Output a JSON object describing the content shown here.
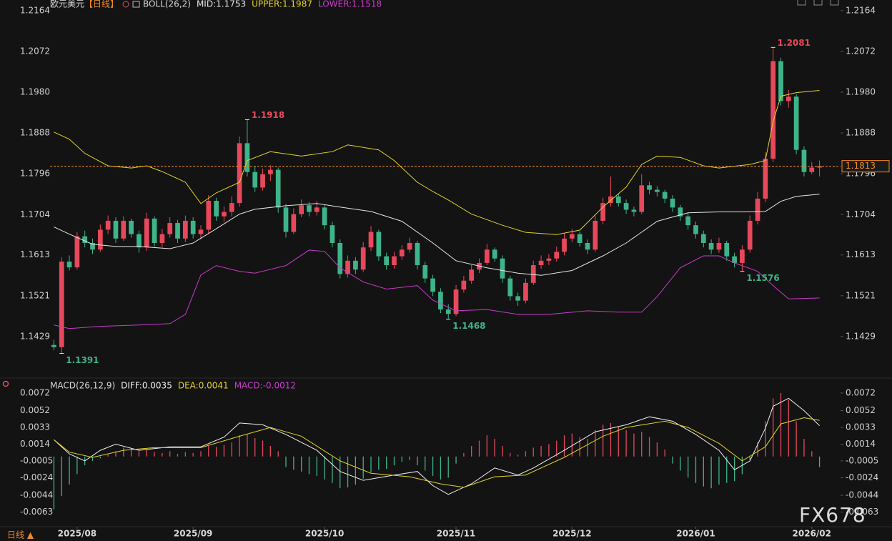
{
  "chart_data": [
    {
      "type": "candlestick",
      "title": "欧元美元",
      "subtitle": "【日线】",
      "indicator": "BOLL(26,2)",
      "up_color": "#e8485b",
      "down_color": "#3db489",
      "xlim": [
        -0.5,
        99.5
      ],
      "ylim": [
        1.1337,
        1.2175
      ],
      "yticks": [
        1.2164,
        1.2072,
        {
          "value": 1.198,
          "label": "1.1980"
        },
        1.1888,
        1.1796,
        1.1704,
        1.1613,
        1.1521,
        1.1429
      ],
      "xticks": [
        {
          "value": 3,
          "label": "2025/08"
        },
        {
          "value": 18,
          "label": "2025/09"
        },
        {
          "value": 35,
          "label": "2025/10"
        },
        {
          "value": 52,
          "label": "2025/11"
        },
        {
          "value": 67,
          "label": "2025/12"
        },
        {
          "value": 83,
          "label": "2026/01"
        },
        {
          "value": 98,
          "label": "2026/02"
        }
      ],
      "last_price_color": "#f08a24",
      "candles": [
        [
          1.141,
          1.1422,
          1.1398,
          1.1405
        ],
        [
          1.1405,
          1.1608,
          1.1391,
          1.1598
        ],
        [
          1.1598,
          1.1612,
          1.1578,
          1.1585
        ],
        [
          1.1585,
          1.1665,
          1.158,
          1.1655
        ],
        [
          1.1655,
          1.1668,
          1.163,
          1.164
        ],
        [
          1.164,
          1.165,
          1.1615,
          1.1625
        ],
        [
          1.1625,
          1.1682,
          1.162,
          1.167
        ],
        [
          1.167,
          1.1702,
          1.166,
          1.169
        ],
        [
          1.169,
          1.1698,
          1.164,
          1.165
        ],
        [
          1.165,
          1.17,
          1.1645,
          1.169
        ],
        [
          1.169,
          1.1695,
          1.1652,
          1.166
        ],
        [
          1.166,
          1.1668,
          1.1618,
          1.163
        ],
        [
          1.163,
          1.1708,
          1.1622,
          1.1695
        ],
        [
          1.1695,
          1.17,
          1.1632,
          1.164
        ],
        [
          1.164,
          1.1672,
          1.163,
          1.166
        ],
        [
          1.166,
          1.1698,
          1.1652,
          1.1685
        ],
        [
          1.1685,
          1.1692,
          1.164,
          1.165
        ],
        [
          1.165,
          1.1702,
          1.1642,
          1.169
        ],
        [
          1.169,
          1.1698,
          1.165,
          1.166
        ],
        [
          1.166,
          1.168,
          1.1648,
          1.167
        ],
        [
          1.167,
          1.1748,
          1.1662,
          1.1735
        ],
        [
          1.1735,
          1.1742,
          1.169,
          1.17
        ],
        [
          1.17,
          1.1722,
          1.1688,
          1.171
        ],
        [
          1.171,
          1.1745,
          1.17,
          1.173
        ],
        [
          1.173,
          1.188,
          1.1722,
          1.1865
        ],
        [
          1.1865,
          1.1918,
          1.179,
          1.18
        ],
        [
          1.18,
          1.1812,
          1.1755,
          1.1765
        ],
        [
          1.1765,
          1.1808,
          1.1758,
          1.1795
        ],
        [
          1.1795,
          1.1815,
          1.178,
          1.1805
        ],
        [
          1.1805,
          1.181,
          1.1708,
          1.172
        ],
        [
          1.172,
          1.1728,
          1.1652,
          1.1665
        ],
        [
          1.1665,
          1.1718,
          1.166,
          1.1705
        ],
        [
          1.1705,
          1.1738,
          1.1698,
          1.1725
        ],
        [
          1.1725,
          1.1732,
          1.17,
          1.171
        ],
        [
          1.171,
          1.1735,
          1.1702,
          1.172
        ],
        [
          1.172,
          1.1726,
          1.167,
          1.168
        ],
        [
          1.168,
          1.1688,
          1.163,
          1.164
        ],
        [
          1.164,
          1.1648,
          1.156,
          1.157
        ],
        [
          1.157,
          1.1612,
          1.1562,
          1.16
        ],
        [
          1.16,
          1.1608,
          1.157,
          1.158
        ],
        [
          1.158,
          1.1642,
          1.1575,
          1.163
        ],
        [
          1.163,
          1.1678,
          1.1622,
          1.1665
        ],
        [
          1.1665,
          1.167,
          1.16,
          1.161
        ],
        [
          1.161,
          1.1618,
          1.158,
          1.159
        ],
        [
          1.159,
          1.162,
          1.1582,
          1.161
        ],
        [
          1.161,
          1.1635,
          1.1602,
          1.1625
        ],
        [
          1.1625,
          1.1652,
          1.1618,
          1.164
        ],
        [
          1.164,
          1.1645,
          1.158,
          1.159
        ],
        [
          1.159,
          1.1598,
          1.155,
          1.156
        ],
        [
          1.156,
          1.1568,
          1.152,
          1.153
        ],
        [
          1.153,
          1.1538,
          1.1482,
          1.149
        ],
        [
          1.149,
          1.1502,
          1.1468,
          1.148
        ],
        [
          1.148,
          1.1545,
          1.1475,
          1.1535
        ],
        [
          1.1535,
          1.1566,
          1.1528,
          1.1555
        ],
        [
          1.1555,
          1.159,
          1.1548,
          1.158
        ],
        [
          1.158,
          1.1605,
          1.1572,
          1.1595
        ],
        [
          1.1595,
          1.1638,
          1.159,
          1.1625
        ],
        [
          1.1625,
          1.163,
          1.1598,
          1.1605
        ],
        [
          1.1605,
          1.1612,
          1.155,
          1.156
        ],
        [
          1.156,
          1.1566,
          1.151,
          1.152
        ],
        [
          1.152,
          1.1528,
          1.1498,
          1.151
        ],
        [
          1.151,
          1.156,
          1.1504,
          1.155
        ],
        [
          1.155,
          1.16,
          1.1545,
          1.159
        ],
        [
          1.159,
          1.1612,
          1.1582,
          1.16
        ],
        [
          1.16,
          1.1615,
          1.159,
          1.1605
        ],
        [
          1.1605,
          1.1632,
          1.1598,
          1.162
        ],
        [
          1.162,
          1.1662,
          1.1612,
          1.165
        ],
        [
          1.165,
          1.1672,
          1.1642,
          1.166
        ],
        [
          1.166,
          1.1666,
          1.1632,
          1.164
        ],
        [
          1.164,
          1.1648,
          1.1615,
          1.1625
        ],
        [
          1.1625,
          1.1702,
          1.162,
          1.169
        ],
        [
          1.169,
          1.1742,
          1.1682,
          1.173
        ],
        [
          1.173,
          1.179,
          1.1722,
          1.1745
        ],
        [
          1.1745,
          1.1752,
          1.1722,
          1.173
        ],
        [
          1.173,
          1.1738,
          1.1705,
          1.1715
        ],
        [
          1.1715,
          1.1722,
          1.17,
          1.171
        ],
        [
          1.171,
          1.1795,
          1.1705,
          1.177
        ],
        [
          1.177,
          1.1778,
          1.175,
          1.176
        ],
        [
          1.176,
          1.1768,
          1.1745,
          1.1755
        ],
        [
          1.1755,
          1.176,
          1.173,
          1.174
        ],
        [
          1.174,
          1.1748,
          1.171,
          1.172
        ],
        [
          1.172,
          1.1726,
          1.169,
          1.17
        ],
        [
          1.17,
          1.1708,
          1.167,
          1.168
        ],
        [
          1.168,
          1.1688,
          1.165,
          1.166
        ],
        [
          1.166,
          1.1668,
          1.163,
          1.164
        ],
        [
          1.164,
          1.1648,
          1.1615,
          1.1625
        ],
        [
          1.1625,
          1.1652,
          1.1618,
          1.164
        ],
        [
          1.164,
          1.1645,
          1.16,
          1.161
        ],
        [
          1.161,
          1.1618,
          1.1585,
          1.1595
        ],
        [
          1.1595,
          1.1635,
          1.1576,
          1.1625
        ],
        [
          1.1625,
          1.1702,
          1.1618,
          1.169
        ],
        [
          1.169,
          1.1755,
          1.1682,
          1.174
        ],
        [
          1.174,
          1.1845,
          1.1732,
          1.183
        ],
        [
          1.183,
          1.2081,
          1.1822,
          1.205
        ],
        [
          1.205,
          1.2058,
          1.195,
          1.196
        ],
        [
          1.196,
          1.1985,
          1.1945,
          1.197
        ],
        [
          1.197,
          1.1975,
          1.184,
          1.185
        ],
        [
          1.185,
          1.1858,
          1.179,
          1.18
        ],
        [
          1.18,
          1.1822,
          1.1795,
          1.181
        ],
        [
          1.181,
          1.1826,
          1.179,
          1.1813
        ]
      ],
      "annotations": [
        1.2081,
        1.1918,
        1.1468,
        1.1391,
        1.1576
      ],
      "series": [
        {
          "name": "MID:1.1753",
          "color": "#e6e6e6",
          "x": [
            0,
            2,
            5,
            8,
            11,
            15,
            18,
            21,
            24,
            26,
            30,
            34,
            37,
            41,
            45,
            49,
            52,
            56,
            60,
            63,
            67,
            71,
            74,
            78,
            82,
            86,
            89,
            92,
            94,
            96,
            99
          ],
          "values": [
            1.1676,
            1.166,
            1.1637,
            1.1632,
            1.1632,
            1.1627,
            1.164,
            1.1672,
            1.1705,
            1.1716,
            1.1724,
            1.1729,
            1.1721,
            1.1711,
            1.1689,
            1.164,
            1.16,
            1.1584,
            1.1572,
            1.1567,
            1.1578,
            1.1611,
            1.164,
            1.1689,
            1.1708,
            1.171,
            1.171,
            1.1711,
            1.1734,
            1.1745,
            1.175
          ]
        },
        {
          "name": "UPPER:1.1987",
          "color": "#e3d327",
          "x": [
            0,
            2,
            4,
            7,
            10,
            12,
            14,
            17,
            19,
            21,
            24,
            25,
            28,
            32,
            36,
            38,
            42,
            44,
            47,
            49,
            51,
            54,
            58,
            61,
            65,
            68,
            71,
            74,
            76,
            78,
            81,
            84,
            86,
            90,
            92,
            93,
            94,
            96,
            99
          ],
          "values": [
            1.189,
            1.1874,
            1.1842,
            1.1814,
            1.1809,
            1.1814,
            1.1801,
            1.1777,
            1.1729,
            1.1753,
            1.1777,
            1.1826,
            1.1846,
            1.1836,
            1.1846,
            1.1861,
            1.185,
            1.1826,
            1.1777,
            1.1756,
            1.1737,
            1.1705,
            1.168,
            1.1664,
            1.1659,
            1.1669,
            1.1721,
            1.1766,
            1.1817,
            1.1836,
            1.1833,
            1.1814,
            1.1809,
            1.1817,
            1.1826,
            1.1914,
            1.1971,
            1.1979,
            1.1984
          ]
        },
        {
          "name": "LOWER:1.1518",
          "color": "#c93bcb",
          "x": [
            0,
            2,
            6,
            11,
            15,
            17,
            19,
            21,
            24,
            26,
            30,
            33,
            35,
            37,
            40,
            43,
            47,
            49,
            52,
            56,
            60,
            64,
            69,
            73,
            76,
            78,
            81,
            84,
            86,
            88,
            91,
            93,
            95,
            99
          ],
          "values": [
            1.1455,
            1.1447,
            1.1452,
            1.1455,
            1.1458,
            1.1479,
            1.1568,
            1.1589,
            1.1576,
            1.1572,
            1.1589,
            1.1624,
            1.1621,
            1.1584,
            1.1552,
            1.1536,
            1.1544,
            1.1511,
            1.1487,
            1.149,
            1.1479,
            1.1479,
            1.1487,
            1.1484,
            1.1484,
            1.1519,
            1.1584,
            1.1611,
            1.1611,
            1.1595,
            1.1576,
            1.1544,
            1.1514,
            1.1516
          ]
        }
      ]
    },
    {
      "type": "macd",
      "title": "MACD(26,12,9)",
      "xlim": [
        -0.5,
        99.5
      ],
      "ylim": [
        -0.0078,
        0.0076
      ],
      "yticks": [
        0.0072,
        0.0052,
        0.0033,
        0.0014,
        -0.0005,
        -0.0024,
        -0.0044,
        -0.0063
      ],
      "series": [
        {
          "name": "DIFF:0.0035",
          "color": "#f0f0f0",
          "x": [
            0,
            2,
            4,
            6,
            8,
            11,
            15,
            19,
            22,
            24,
            27,
            30,
            34,
            37,
            40,
            44,
            47,
            49,
            51,
            54,
            57,
            60,
            62,
            66,
            70,
            74,
            77,
            80,
            83,
            86,
            88,
            90,
            92,
            93,
            95,
            97,
            99
          ],
          "values": [
            0.0019,
            0.0003,
            -0.0005,
            0.0007,
            0.0014,
            0.0007,
            0.0011,
            0.0011,
            0.0022,
            0.0038,
            0.0036,
            0.0025,
            0.0007,
            -0.0017,
            -0.0027,
            -0.0021,
            -0.0017,
            -0.0033,
            -0.0043,
            -0.0031,
            -0.0013,
            -0.0021,
            -0.0013,
            0.0007,
            0.0028,
            0.0036,
            0.0045,
            0.004,
            0.0025,
            0.0007,
            -0.0015,
            -0.0005,
            0.0032,
            0.0057,
            0.0066,
            0.0052,
            0.0035
          ]
        },
        {
          "name": "DEA:0.0041",
          "color": "#e3d327",
          "x": [
            0,
            2,
            5,
            9,
            13,
            19,
            24,
            28,
            32,
            37,
            41,
            46,
            50,
            53,
            57,
            61,
            66,
            71,
            74,
            79,
            82,
            86,
            89,
            92,
            94,
            97,
            99
          ],
          "values": [
            0.0019,
            0.0005,
            -0.0001,
            0.0007,
            0.001,
            0.001,
            0.0023,
            0.0033,
            0.0023,
            -0.0005,
            -0.0019,
            -0.0023,
            -0.0031,
            -0.0035,
            -0.0023,
            -0.0021,
            -0.0001,
            0.0023,
            0.0033,
            0.004,
            0.0033,
            0.0015,
            -0.0005,
            0.0011,
            0.0037,
            0.0044,
            0.0041
          ]
        },
        {
          "name": "MACD:-0.0012",
          "color": "#c93bcb",
          "up_color": "#e8485b",
          "down_color": "#3db489",
          "values": [
            -0.006,
            -0.0045,
            -0.0032,
            -0.002,
            -0.001,
            -0.0005,
            -0.0002,
            0.0002,
            0.0006,
            0.001,
            0.0009,
            0.0006,
            0.0008,
            0.0005,
            0.0004,
            0.0006,
            0.0003,
            0.0005,
            0.0004,
            0.0006,
            0.0012,
            0.0011,
            0.0013,
            0.0016,
            0.0024,
            0.0025,
            0.0021,
            0.0018,
            0.0012,
            0.0006,
            -0.0012,
            -0.0015,
            -0.0017,
            -0.002,
            -0.0022,
            -0.0026,
            -0.003,
            -0.0036,
            -0.0035,
            -0.0032,
            -0.0025,
            -0.0018,
            -0.0015,
            -0.0014,
            -0.001,
            -0.0006,
            -0.0004,
            -0.001,
            -0.0016,
            -0.0022,
            -0.0026,
            -0.0024,
            -0.0008,
            0.0004,
            0.0012,
            0.0018,
            0.0024,
            0.002,
            0.0012,
            0.0004,
            0.0002,
            0.0006,
            0.001,
            0.0012,
            0.0014,
            0.0018,
            0.0024,
            0.0026,
            0.0022,
            0.002,
            0.003,
            0.0036,
            0.0038,
            0.0034,
            0.003,
            0.0026,
            0.0028,
            0.0022,
            0.0016,
            0.0008,
            -0.0008,
            -0.0016,
            -0.0024,
            -0.003,
            -0.0034,
            -0.0036,
            -0.0032,
            -0.003,
            -0.0028,
            -0.002,
            -0.0004,
            0.0016,
            0.004,
            0.0066,
            0.0072,
            0.0064,
            0.004,
            0.002,
            0.0006,
            -0.0012
          ]
        }
      ]
    }
  ],
  "footer": {
    "period_button": "日线 ▲",
    "watermark": "FX678"
  }
}
